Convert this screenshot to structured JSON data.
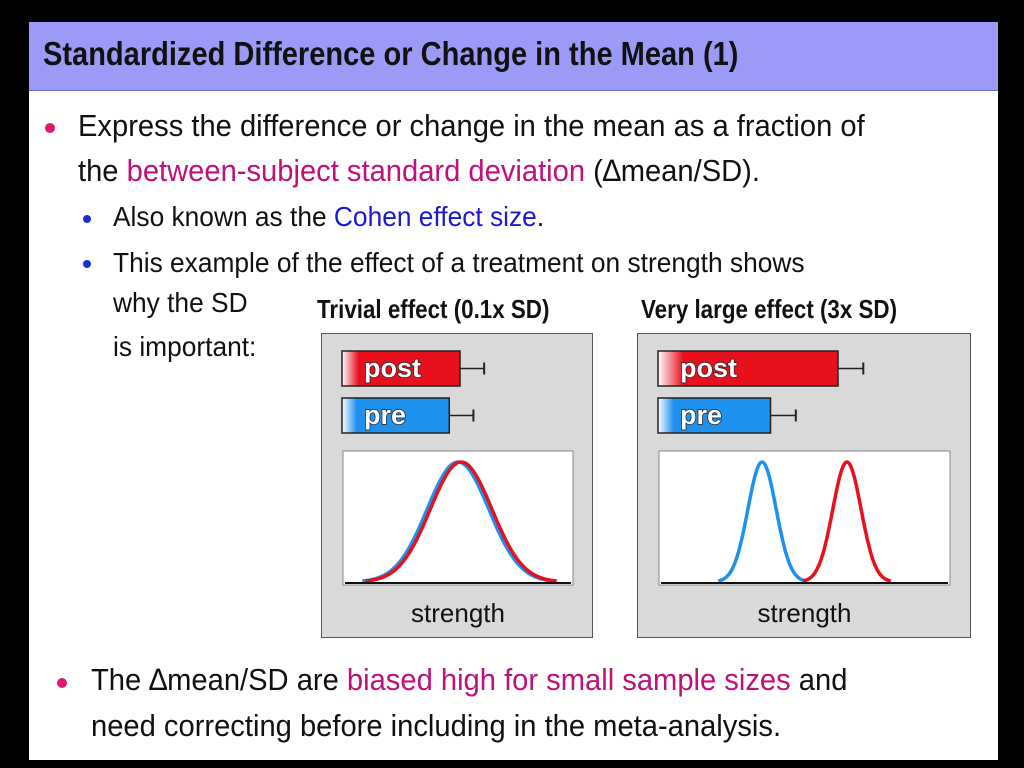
{
  "title": "Standardized Difference or Change in the Mean (1)",
  "bullets": {
    "b1": {
      "line1": "Express the difference or change in the mean as a fraction of",
      "line2_pre": "the ",
      "line2_highlight": "between-subject standard deviation",
      "line2_post": " (∆mean/SD)."
    },
    "b1a": {
      "pre": "Also known as the ",
      "highlight": "Cohen effect size",
      "post": "."
    },
    "b1b": {
      "line1": "This example of the effect of a treatment on strength shows",
      "line2": "why the SD",
      "line3": "is important:"
    },
    "b2": {
      "line1_pre": "The ∆mean/SD are ",
      "line1_highlight": "biased high for small sample sizes",
      "line1_post": " and",
      "line2": "need correcting before including in the meta-analysis."
    }
  },
  "colors": {
    "post": "#e8101c",
    "pre": "#1e90ee",
    "highlight_magenta": "#c0107a",
    "highlight_blue": "#1a1ad4",
    "title_bar": "#9b9bf7"
  },
  "chart_data": [
    {
      "type": "bar+distribution",
      "title": "Trivial effect (0.1x SD)",
      "bars": [
        {
          "label": "post",
          "value": 1.1,
          "error": 0.25
        },
        {
          "label": "pre",
          "value": 1.0,
          "error": 0.25
        }
      ],
      "distributions": [
        {
          "name": "pre",
          "mean": 0.0,
          "sd": 1.0
        },
        {
          "name": "post",
          "mean": 0.1,
          "sd": 1.0
        }
      ],
      "xlabel": "strength",
      "xlim": [
        -3.6,
        3.6
      ]
    },
    {
      "type": "bar+distribution",
      "title": "Very large effect (3x SD)",
      "bars": [
        {
          "label": "post",
          "value": 1.6,
          "error": 0.25
        },
        {
          "label": "pre",
          "value": 1.0,
          "error": 0.25
        }
      ],
      "distributions": [
        {
          "name": "pre",
          "mean": -0.9,
          "sd": 0.3
        },
        {
          "name": "post",
          "mean": 0.9,
          "sd": 0.3
        }
      ],
      "xlabel": "strength",
      "xlim": [
        -3.0,
        3.0
      ]
    }
  ]
}
